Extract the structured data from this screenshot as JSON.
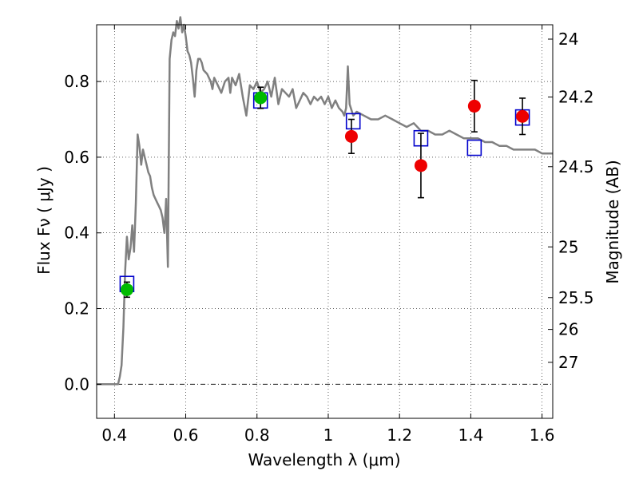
{
  "chart_data": {
    "type": "scatter",
    "xlabel": "Wavelength  λ (μm)",
    "ylabel": "Flux  Fν  ( μJy )",
    "ylabel_right": "Magnitude (AB)",
    "xlim": [
      0.35,
      1.63
    ],
    "ylim": [
      -0.09,
      0.95
    ],
    "grid": true,
    "x_ticks": [
      0.4,
      0.6,
      0.8,
      1.0,
      1.2,
      1.4,
      1.6
    ],
    "x_tick_labels": [
      "0.4",
      "0.6",
      "0.8",
      "1",
      "1.2",
      "1.4",
      "1.6"
    ],
    "y_ticks": [
      0.0,
      0.2,
      0.4,
      0.6,
      0.8
    ],
    "y_tick_labels": [
      "0.0",
      "0.2",
      "0.4",
      "0.6",
      "0.8"
    ],
    "right_ticks": [
      {
        "label": "24",
        "flux": 0.912
      },
      {
        "label": "24.2",
        "flux": 0.759
      },
      {
        "label": "24.5",
        "flux": 0.575
      },
      {
        "label": "25",
        "flux": 0.363
      },
      {
        "label": "25.5",
        "flux": 0.229
      },
      {
        "label": "26",
        "flux": 0.145
      },
      {
        "label": "27",
        "flux": 0.058
      }
    ],
    "colors": {
      "model": "#808080",
      "observed_green": "#00bb00",
      "observed_red": "#ee0000",
      "model_box": "#0000cc",
      "zero_line": "#000000"
    },
    "model_spectrum": {
      "name": "",
      "x": [
        0.35,
        0.4,
        0.41,
        0.415,
        0.42,
        0.425,
        0.43,
        0.435,
        0.44,
        0.445,
        0.45,
        0.455,
        0.46,
        0.465,
        0.47,
        0.475,
        0.48,
        0.485,
        0.49,
        0.495,
        0.5,
        0.505,
        0.51,
        0.515,
        0.52,
        0.525,
        0.53,
        0.535,
        0.54,
        0.545,
        0.55,
        0.555,
        0.56,
        0.565,
        0.57,
        0.575,
        0.58,
        0.585,
        0.59,
        0.595,
        0.6,
        0.605,
        0.61,
        0.615,
        0.62,
        0.625,
        0.63,
        0.635,
        0.64,
        0.645,
        0.65,
        0.66,
        0.67,
        0.675,
        0.68,
        0.69,
        0.7,
        0.71,
        0.72,
        0.725,
        0.73,
        0.74,
        0.75,
        0.76,
        0.77,
        0.78,
        0.79,
        0.8,
        0.81,
        0.82,
        0.83,
        0.84,
        0.85,
        0.86,
        0.87,
        0.88,
        0.89,
        0.9,
        0.91,
        0.92,
        0.93,
        0.94,
        0.95,
        0.96,
        0.97,
        0.98,
        0.99,
        1.0,
        1.01,
        1.02,
        1.03,
        1.04,
        1.045,
        1.05,
        1.055,
        1.06,
        1.07,
        1.08,
        1.1,
        1.12,
        1.14,
        1.16,
        1.18,
        1.2,
        1.22,
        1.24,
        1.26,
        1.28,
        1.3,
        1.32,
        1.34,
        1.36,
        1.38,
        1.4,
        1.42,
        1.44,
        1.46,
        1.48,
        1.5,
        1.52,
        1.54,
        1.56,
        1.58,
        1.6,
        1.63
      ],
      "y": [
        0.0,
        0.0,
        0.0,
        0.02,
        0.05,
        0.15,
        0.3,
        0.39,
        0.33,
        0.36,
        0.42,
        0.35,
        0.48,
        0.66,
        0.63,
        0.58,
        0.62,
        0.6,
        0.58,
        0.56,
        0.55,
        0.52,
        0.5,
        0.49,
        0.48,
        0.47,
        0.46,
        0.44,
        0.4,
        0.49,
        0.31,
        0.86,
        0.91,
        0.93,
        0.92,
        0.96,
        0.94,
        0.97,
        0.93,
        0.95,
        0.92,
        0.88,
        0.87,
        0.85,
        0.81,
        0.76,
        0.83,
        0.86,
        0.86,
        0.85,
        0.83,
        0.82,
        0.8,
        0.78,
        0.81,
        0.79,
        0.77,
        0.8,
        0.81,
        0.77,
        0.81,
        0.79,
        0.82,
        0.76,
        0.71,
        0.79,
        0.78,
        0.8,
        0.77,
        0.78,
        0.8,
        0.76,
        0.81,
        0.74,
        0.78,
        0.77,
        0.76,
        0.78,
        0.73,
        0.75,
        0.77,
        0.76,
        0.74,
        0.76,
        0.75,
        0.76,
        0.74,
        0.76,
        0.73,
        0.75,
        0.73,
        0.72,
        0.71,
        0.73,
        0.84,
        0.74,
        0.71,
        0.72,
        0.71,
        0.7,
        0.7,
        0.71,
        0.7,
        0.69,
        0.68,
        0.69,
        0.67,
        0.67,
        0.66,
        0.66,
        0.67,
        0.66,
        0.65,
        0.65,
        0.65,
        0.64,
        0.64,
        0.63,
        0.63,
        0.62,
        0.62,
        0.62,
        0.62,
        0.61,
        0.61
      ]
    },
    "observed_points": [
      {
        "x": 0.435,
        "y": 0.25,
        "err": 0.02,
        "color": "green"
      },
      {
        "x": 0.81,
        "y": 0.757,
        "err": 0.028,
        "color": "green"
      },
      {
        "x": 1.065,
        "y": 0.655,
        "err": 0.045,
        "color": "red"
      },
      {
        "x": 1.26,
        "y": 0.578,
        "err": 0.085,
        "color": "red"
      },
      {
        "x": 1.41,
        "y": 0.735,
        "err": 0.068,
        "color": "red"
      },
      {
        "x": 1.545,
        "y": 0.708,
        "err": 0.048,
        "color": "red"
      }
    ],
    "model_boxes": [
      {
        "x": 0.435,
        "y": 0.265
      },
      {
        "x": 0.81,
        "y": 0.75
      },
      {
        "x": 1.07,
        "y": 0.695
      },
      {
        "x": 1.26,
        "y": 0.65
      },
      {
        "x": 1.41,
        "y": 0.625
      },
      {
        "x": 1.545,
        "y": 0.705
      }
    ]
  }
}
